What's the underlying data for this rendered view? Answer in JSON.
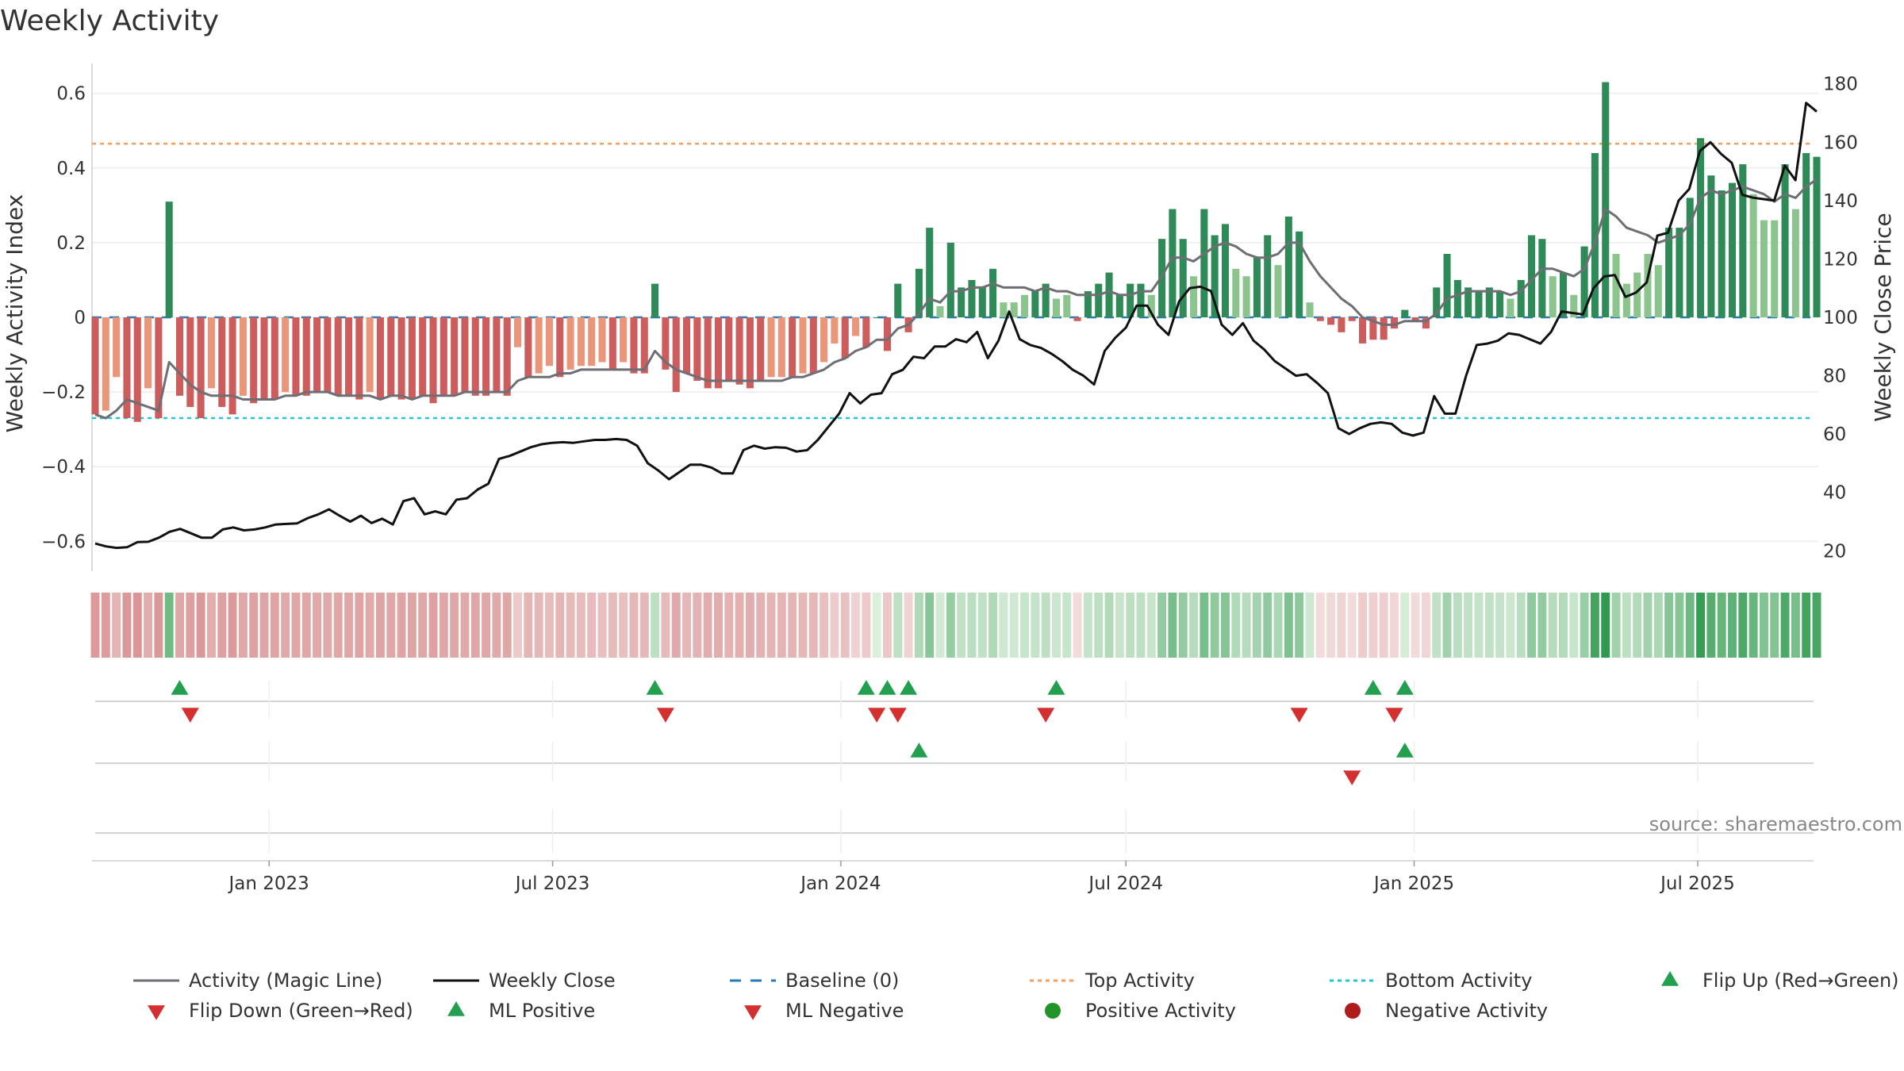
{
  "chart_data": {
    "type": "bar",
    "title": "Weekly Activity",
    "ylabel_left": "Weekly Activity Index",
    "ylabel_right": "Weekly Close Price",
    "source": "source: sharemaestro.com",
    "x_range": [
      "2022-09-12",
      "2025-09-15"
    ],
    "x_ticks": [
      {
        "date": "2023-01-01",
        "label": "Jan 2023"
      },
      {
        "date": "2023-07-01",
        "label": "Jul 2023"
      },
      {
        "date": "2024-01-01",
        "label": "Jan 2024"
      },
      {
        "date": "2024-07-01",
        "label": "Jul 2024"
      },
      {
        "date": "2025-01-01",
        "label": "Jan 2025"
      },
      {
        "date": "2025-07-01",
        "label": "Jul 2025"
      }
    ],
    "ylim_left": [
      -0.68,
      0.68
    ],
    "yticks_left": [
      {
        "v": 0.6,
        "label": "0.6"
      },
      {
        "v": 0.4,
        "label": "0.4"
      },
      {
        "v": 0.2,
        "label": "0.2"
      },
      {
        "v": 0,
        "label": "0"
      },
      {
        "v": -0.2,
        "label": "−0.2"
      },
      {
        "v": -0.4,
        "label": "−0.4"
      },
      {
        "v": -0.6,
        "label": "−0.6"
      }
    ],
    "ylim_right": [
      13,
      187
    ],
    "yticks_right": [
      {
        "v": 180,
        "label": "180"
      },
      {
        "v": 160,
        "label": "160"
      },
      {
        "v": 140,
        "label": "140"
      },
      {
        "v": 120,
        "label": "120"
      },
      {
        "v": 100,
        "label": "100"
      },
      {
        "v": 80,
        "label": "80"
      },
      {
        "v": 60,
        "label": "60"
      },
      {
        "v": 40,
        "label": "40"
      },
      {
        "v": 20,
        "label": "20"
      }
    ],
    "reference_lines": {
      "baseline": 0,
      "top_activity": 0.465,
      "bottom_activity": -0.27
    },
    "colors": {
      "pos_strong": "#2e8b57",
      "pos_light": "#8bc58d",
      "neg_strong": "#cd5c5c",
      "neg_light": "#e9967a",
      "magic_line": "#6e6e75",
      "close": "#111111",
      "baseline": "#2a7ab8",
      "top": "#f0a060",
      "bottom": "#20c8d0",
      "up_marker": "#22a050",
      "down_marker": "#d43030"
    },
    "weekly_activity": [
      -0.26,
      -0.25,
      -0.16,
      -0.27,
      -0.28,
      -0.19,
      -0.27,
      0.31,
      -0.21,
      -0.24,
      -0.27,
      -0.19,
      -0.24,
      -0.26,
      -0.21,
      -0.23,
      -0.22,
      -0.22,
      -0.2,
      -0.21,
      -0.21,
      -0.2,
      -0.2,
      -0.21,
      -0.21,
      -0.22,
      -0.2,
      -0.22,
      -0.21,
      -0.22,
      -0.22,
      -0.21,
      -0.23,
      -0.21,
      -0.21,
      -0.2,
      -0.21,
      -0.21,
      -0.2,
      -0.21,
      -0.08,
      -0.16,
      -0.15,
      -0.13,
      -0.16,
      -0.14,
      -0.13,
      -0.13,
      -0.12,
      -0.14,
      -0.12,
      -0.15,
      -0.15,
      0.09,
      -0.14,
      -0.2,
      -0.15,
      -0.17,
      -0.19,
      -0.19,
      -0.17,
      -0.18,
      -0.19,
      -0.17,
      -0.16,
      -0.16,
      -0.16,
      -0.15,
      -0.15,
      -0.12,
      -0.07,
      -0.11,
      -0.05,
      -0.08,
      0.0,
      -0.09,
      0.09,
      -0.04,
      0.13,
      0.24,
      0.03,
      0.2,
      0.08,
      0.1,
      0.08,
      0.13,
      0.04,
      0.04,
      0.06,
      0.07,
      0.09,
      0.05,
      0.06,
      -0.01,
      0.07,
      0.09,
      0.12,
      0.06,
      0.09,
      0.09,
      0.06,
      0.21,
      0.29,
      0.21,
      0.11,
      0.29,
      0.22,
      0.25,
      0.13,
      0.11,
      0.16,
      0.22,
      0.14,
      0.27,
      0.23,
      0.04,
      -0.01,
      -0.02,
      -0.04,
      -0.01,
      -0.07,
      -0.06,
      -0.06,
      -0.03,
      0.02,
      -0.01,
      -0.03,
      0.08,
      0.17,
      0.1,
      0.08,
      0.07,
      0.08,
      0.07,
      0.05,
      0.1,
      0.22,
      0.21,
      0.11,
      0.12,
      0.06,
      0.19,
      0.44,
      0.63,
      0.17,
      0.09,
      0.12,
      0.17,
      0.14,
      0.24,
      0.24,
      0.32,
      0.48,
      0.38,
      0.34,
      0.36,
      0.41,
      0.33,
      0.26,
      0.26,
      0.41,
      0.29,
      0.44,
      0.43
    ],
    "magic_line": [
      -0.26,
      -0.27,
      -0.25,
      -0.22,
      -0.23,
      -0.24,
      -0.25,
      -0.12,
      -0.15,
      -0.18,
      -0.2,
      -0.21,
      -0.21,
      -0.21,
      -0.22,
      -0.22,
      -0.22,
      -0.22,
      -0.21,
      -0.21,
      -0.2,
      -0.2,
      -0.2,
      -0.21,
      -0.21,
      -0.21,
      -0.21,
      -0.22,
      -0.21,
      -0.21,
      -0.22,
      -0.21,
      -0.21,
      -0.21,
      -0.21,
      -0.2,
      -0.2,
      -0.2,
      -0.2,
      -0.2,
      -0.17,
      -0.16,
      -0.16,
      -0.16,
      -0.15,
      -0.15,
      -0.14,
      -0.14,
      -0.14,
      -0.14,
      -0.14,
      -0.14,
      -0.14,
      -0.09,
      -0.12,
      -0.14,
      -0.15,
      -0.16,
      -0.17,
      -0.17,
      -0.17,
      -0.17,
      -0.17,
      -0.17,
      -0.17,
      -0.17,
      -0.16,
      -0.16,
      -0.15,
      -0.14,
      -0.12,
      -0.11,
      -0.09,
      -0.08,
      -0.06,
      -0.06,
      -0.03,
      -0.02,
      0.01,
      0.05,
      0.04,
      0.07,
      0.07,
      0.08,
      0.08,
      0.09,
      0.08,
      0.08,
      0.08,
      0.07,
      0.08,
      0.07,
      0.07,
      0.06,
      0.06,
      0.06,
      0.07,
      0.06,
      0.06,
      0.07,
      0.07,
      0.11,
      0.16,
      0.16,
      0.15,
      0.17,
      0.19,
      0.2,
      0.19,
      0.17,
      0.16,
      0.16,
      0.17,
      0.2,
      0.2,
      0.15,
      0.11,
      0.08,
      0.05,
      0.03,
      0.0,
      -0.01,
      -0.02,
      -0.02,
      -0.01,
      -0.01,
      -0.01,
      0.01,
      0.05,
      0.06,
      0.07,
      0.07,
      0.07,
      0.07,
      0.06,
      0.07,
      0.1,
      0.13,
      0.13,
      0.12,
      0.11,
      0.13,
      0.2,
      0.29,
      0.27,
      0.24,
      0.23,
      0.22,
      0.2,
      0.21,
      0.22,
      0.25,
      0.32,
      0.34,
      0.33,
      0.34,
      0.35,
      0.34,
      0.33,
      0.31,
      0.33,
      0.32,
      0.35,
      0.37
    ],
    "weekly_close": [
      22.5,
      21.5,
      21.0,
      21.2,
      23.0,
      23.1,
      24.5,
      26.5,
      27.5,
      26.0,
      24.5,
      24.5,
      27.3,
      28.0,
      27.0,
      27.3,
      28.0,
      29.0,
      29.2,
      29.4,
      31.2,
      32.5,
      34.2,
      32.0,
      30.0,
      32.0,
      29.5,
      31.0,
      29.0,
      37.0,
      38.0,
      32.5,
      33.5,
      32.5,
      37.5,
      38.0,
      41.0,
      43.0,
      51.5,
      52.5,
      54.0,
      55.5,
      56.5,
      57.0,
      57.2,
      57.0,
      57.5,
      58.0,
      58.0,
      58.3,
      58.0,
      56.0,
      50.0,
      47.5,
      44.5,
      47.0,
      49.5,
      49.5,
      48.5,
      46.5,
      46.5,
      54.5,
      56.0,
      55.0,
      55.5,
      55.3,
      54.0,
      54.5,
      58.0,
      62.5,
      67.0,
      74.0,
      70.5,
      73.5,
      74.0,
      80.5,
      82.0,
      86.5,
      86.0,
      90.0,
      90.0,
      92.5,
      91.5,
      95.0,
      86.0,
      92.0,
      102.0,
      92.5,
      90.5,
      89.5,
      87.5,
      85.0,
      82.0,
      80.0,
      77.0,
      88.5,
      93.0,
      96.5,
      104.0,
      104.0,
      97.5,
      94.0,
      105.5,
      110.0,
      110.5,
      109.0,
      97.5,
      94.0,
      98.0,
      92.0,
      89.0,
      85.0,
      82.5,
      80.0,
      80.5,
      77.5,
      74.0,
      62.0,
      60.0,
      62.0,
      63.5,
      64.0,
      63.5,
      60.5,
      59.5,
      60.5,
      73.0,
      67.0,
      67.0,
      80.0,
      90.5,
      91.0,
      92.0,
      94.5,
      94.0,
      92.5,
      91.0,
      95.0,
      102.0,
      101.5,
      101.0,
      110.0,
      114.0,
      114.5,
      107.0,
      108.5,
      112.0,
      128.0,
      129.0,
      140.0,
      144.0,
      157.0,
      160.0,
      156.0,
      153.0,
      142.0,
      141.0,
      140.5,
      140.0,
      152.0,
      147.0,
      173.5,
      170.5
    ],
    "heat_strip_note": "color intensity per week",
    "flip_markers": {
      "flip_up_weeks": [
        8,
        53,
        73,
        75,
        77,
        91,
        121,
        124
      ],
      "flip_down_weeks": [
        9,
        54,
        74,
        76,
        90,
        114,
        123
      ],
      "ml_positive_weeks": [
        78,
        124
      ],
      "ml_negative_weeks": [
        119
      ]
    },
    "legend": [
      {
        "key": "magic",
        "label": "Activity (Magic Line)"
      },
      {
        "key": "close",
        "label": "Weekly Close"
      },
      {
        "key": "baseline",
        "label": "Baseline (0)"
      },
      {
        "key": "top",
        "label": "Top Activity"
      },
      {
        "key": "bottom",
        "label": "Bottom Activity"
      },
      {
        "key": "flipup",
        "label": "Flip Up (Red→Green)"
      },
      {
        "key": "flipdown",
        "label": "Flip Down (Green→Red)"
      },
      {
        "key": "mlpos",
        "label": "ML Positive"
      },
      {
        "key": "mlneg",
        "label": "ML Negative"
      },
      {
        "key": "posact",
        "label": "Positive Activity"
      },
      {
        "key": "negact",
        "label": "Negative Activity"
      }
    ]
  }
}
